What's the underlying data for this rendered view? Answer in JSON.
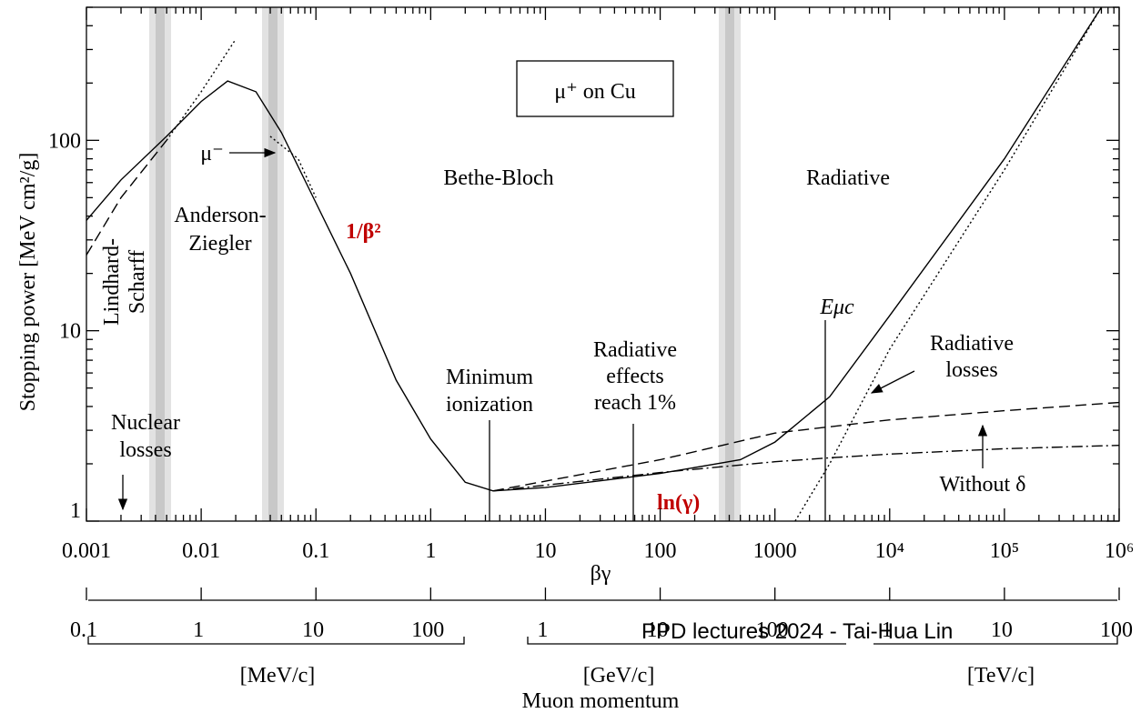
{
  "chart_data": {
    "type": "line",
    "title": "μ⁺ on Cu",
    "xlabel": "βγ",
    "ylabel": "Stopping power [MeV cm²/g]",
    "log_x": true,
    "log_y": true,
    "xlim": [
      0.001,
      1000000
    ],
    "ylim": [
      1,
      500
    ],
    "xticks": [
      0.001,
      0.01,
      0.1,
      1,
      10,
      100,
      1000,
      {
        "value": 10000,
        "label": "10⁴"
      },
      {
        "value": 100000,
        "label": "10⁵"
      },
      {
        "value": 1000000,
        "label": "10⁶"
      }
    ],
    "yticks": [
      1,
      10,
      100
    ],
    "series": [
      {
        "color": "#000000",
        "dash": "solid",
        "x": [
          0.001,
          0.002,
          0.005,
          0.01,
          0.017,
          0.03,
          0.05,
          0.1,
          0.2,
          0.5,
          1,
          2,
          3.5,
          10,
          100,
          500,
          1000,
          3000,
          10000,
          100000,
          700000
        ],
        "values": [
          38,
          62,
          105,
          160,
          205,
          180,
          110,
          47,
          20,
          5.5,
          2.7,
          1.6,
          1.44,
          1.5,
          1.78,
          2.1,
          2.6,
          4.5,
          12,
          80,
          500
        ]
      },
      {
        "color": "#000000",
        "dash": "dashed",
        "x": [
          3.5,
          100,
          1000,
          10000,
          100000,
          1000000
        ],
        "values": [
          1.44,
          2.1,
          2.9,
          3.4,
          3.8,
          4.2
        ]
      },
      {
        "color": "#000000",
        "dash": "dashdot",
        "x": [
          3.5,
          100,
          1000,
          3000,
          10000,
          100000,
          1000000
        ],
        "values": [
          1.44,
          1.8,
          2.05,
          2.15,
          2.25,
          2.4,
          2.5
        ]
      },
      {
        "color": "#000000",
        "dash": "dotted",
        "x": [
          1500,
          3000,
          10000,
          100000,
          700000
        ],
        "values": [
          1,
          2,
          8,
          70,
          500
        ]
      },
      {
        "color": "#000000",
        "dash": "dashed",
        "x": [
          0.001,
          0.002,
          0.005
        ],
        "values": [
          25,
          50,
          100
        ]
      },
      {
        "color": "#000000",
        "dash": "dotted",
        "x": [
          0.005,
          0.01,
          0.02
        ],
        "values": [
          100,
          180,
          340
        ]
      },
      {
        "color": "#000000",
        "dash": "dotted",
        "x": [
          0.04,
          0.07,
          0.1
        ],
        "values": [
          105,
          80,
          50
        ]
      }
    ],
    "annotations": [
      {
        "lines": [
          "Bethe-Bloch"
        ]
      },
      {
        "lines": [
          "Radiative"
        ]
      },
      {
        "lines": [
          "Anderson-",
          "Ziegler"
        ]
      },
      {
        "lines": [
          "Lindhard-",
          "Scharff"
        ]
      },
      {
        "lines": [
          "Nuclear",
          "losses"
        ]
      },
      {
        "lines": [
          "Minimum",
          "ionization"
        ]
      },
      {
        "lines": [
          "Radiative",
          "effects",
          "reach 1%"
        ]
      },
      {
        "lines": [
          "Eμc"
        ]
      },
      {
        "lines": [
          "Radiative",
          "losses"
        ]
      },
      {
        "lines": [
          "Without δ"
        ]
      },
      {
        "lines": [
          "μ⁻"
        ]
      }
    ],
    "big_labels": [
      "1/β²",
      "ln(γ)"
    ],
    "momentum_axis": {
      "label": "Muon momentum",
      "xlim": [
        0.1057,
        105700000
      ],
      "ticks": [
        0.1,
        1,
        10,
        100,
        {
          "value": 1000,
          "label": "1"
        },
        {
          "value": 10000,
          "label": "10"
        },
        {
          "value": 100000,
          "label": "100"
        },
        {
          "value": 1000000,
          "label": "1"
        },
        {
          "value": 10000000,
          "label": "10"
        },
        {
          "value": 100000000,
          "label": "100"
        }
      ],
      "units": [
        "[MeV/c]",
        "[GeV/c]",
        "[TeV/c]"
      ]
    }
  },
  "footer": "PPD lectures 2024 - Tai-Hua Lin"
}
